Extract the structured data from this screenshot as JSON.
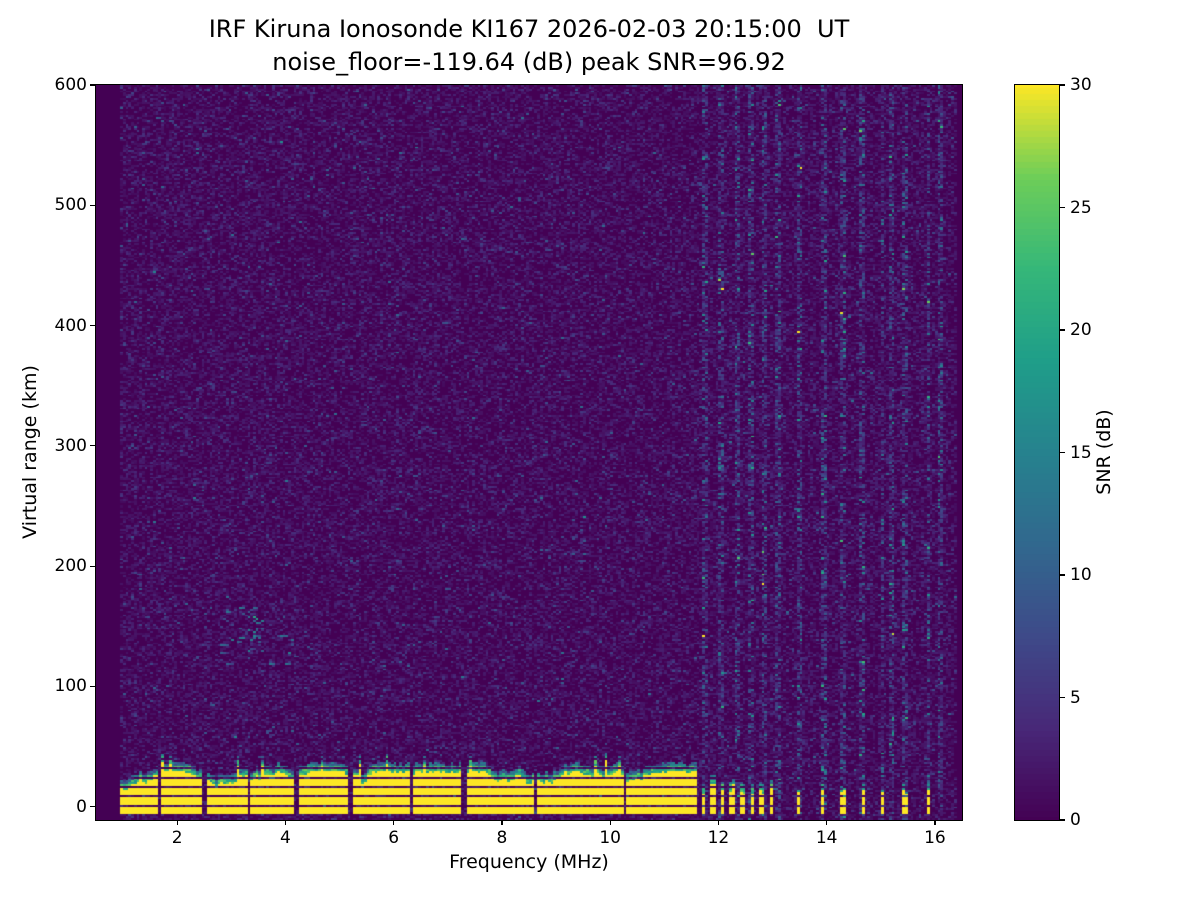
{
  "title_line1": "IRF Kiruna Ionosonde KI167 2026-02-03 20:15:00  UT",
  "title_line2": "noise_floor=-119.64 (dB) peak SNR=96.92",
  "xlabel": "Frequency (MHz)",
  "ylabel": "Virtual range (km)",
  "colorbar_label": "SNR (dB)",
  "chart_data": {
    "type": "heatmap",
    "title": "IRF Kiruna Ionosonde KI167 2026-02-03 20:15:00  UT",
    "subtitle": "noise_floor=-119.64 (dB) peak SNR=96.92",
    "station": "IRF Kiruna Ionosonde KI167",
    "timestamp_ut": "2026-02-03 20:15:00 UT",
    "noise_floor_db": -119.64,
    "peak_snr_db": 96.92,
    "xlabel": "Frequency (MHz)",
    "ylabel": "Virtual range (km)",
    "x_range_mhz": [
      0.5,
      16.5
    ],
    "y_range_km": [
      -11,
      600
    ],
    "xticks": [
      2,
      4,
      6,
      8,
      10,
      12,
      14,
      16
    ],
    "yticks": [
      0,
      100,
      200,
      300,
      400,
      500,
      600
    ],
    "colorbar": {
      "label": "SNR (dB)",
      "vmin": 0,
      "vmax": 30,
      "ticks": [
        0,
        5,
        10,
        15,
        20,
        25,
        30
      ]
    },
    "colormap": {
      "name": "viridis",
      "stops": [
        [
          0,
          [
            68,
            1,
            84
          ]
        ],
        [
          0.125,
          [
            72,
            40,
            120
          ]
        ],
        [
          0.25,
          [
            62,
            74,
            137
          ]
        ],
        [
          0.375,
          [
            49,
            104,
            142
          ]
        ],
        [
          0.5,
          [
            38,
            130,
            142
          ]
        ],
        [
          0.625,
          [
            31,
            158,
            137
          ]
        ],
        [
          0.75,
          [
            53,
            183,
            121
          ]
        ],
        [
          0.875,
          [
            110,
            206,
            88
          ]
        ],
        [
          1,
          [
            253,
            231,
            37
          ]
        ]
      ],
      "background_hex": "#440154",
      "peak_hex": "#fde725"
    },
    "seed": 167,
    "cell": {
      "df": 0.05,
      "dr": 1.55
    },
    "data_freq_range": [
      0.95,
      16.4
    ],
    "noise_mean_db": 1.45,
    "noise_stripes": [
      11.75,
      12.05,
      12.35,
      12.6,
      12.85,
      13.1,
      13.5,
      13.95,
      14.3,
      14.65,
      15.02,
      15.2,
      15.45,
      15.88,
      16.1
    ],
    "noise_stripe_halfwidth": 0.03,
    "noise_stripe_boost": 2.6,
    "ground_band": {
      "freq_start": 0.95,
      "continuous_until": 11.62,
      "top_km_base": 26,
      "top_km_min": 16,
      "top_km_max": 38,
      "gaps": [
        [
          1.68,
          0.06
        ],
        [
          2.5,
          0.06
        ],
        [
          3.33,
          0.05
        ],
        [
          4.2,
          0.12
        ],
        [
          5.2,
          0.06
        ],
        [
          6.32,
          0.08
        ],
        [
          7.3,
          0.06
        ],
        [
          8.62,
          0.04
        ],
        [
          9.0,
          0.05
        ],
        [
          10.28,
          0.06
        ],
        [
          11.3,
          0.04
        ]
      ],
      "stepped": {
        "start": 11.72,
        "end": 13.0,
        "spacing": 0.18,
        "width": 0.08
      },
      "sparse_freqs": [
        13.48,
        13.93,
        14.3,
        14.66,
        15.02,
        15.45,
        15.88
      ],
      "sparse_width": 0.06,
      "sparse_top_km": 16
    },
    "echo_trace": {
      "freq_mhz": [
        2.8,
        4.3
      ],
      "range_km": [
        116,
        166
      ],
      "count": 34,
      "clump": {
        "freq_mhz": [
          3.3,
          3.6
        ],
        "range_km": [
          138,
          164
        ],
        "count": 14
      }
    }
  }
}
